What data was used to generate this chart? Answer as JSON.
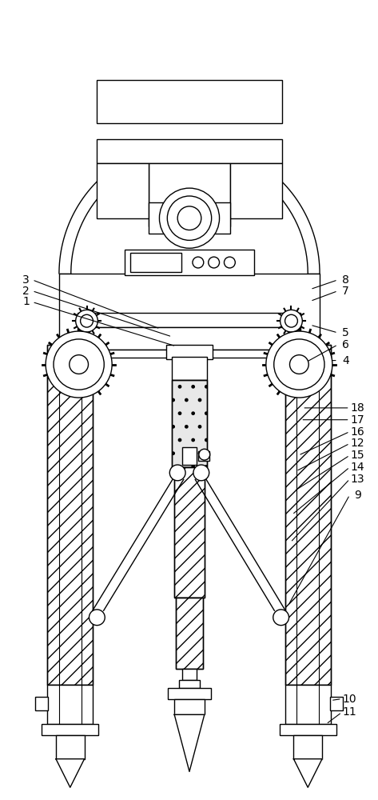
{
  "fig_width": 4.73,
  "fig_height": 10.0,
  "dpi": 100,
  "line_color": "#000000",
  "bg_color": "#ffffff",
  "lw": 1.0
}
